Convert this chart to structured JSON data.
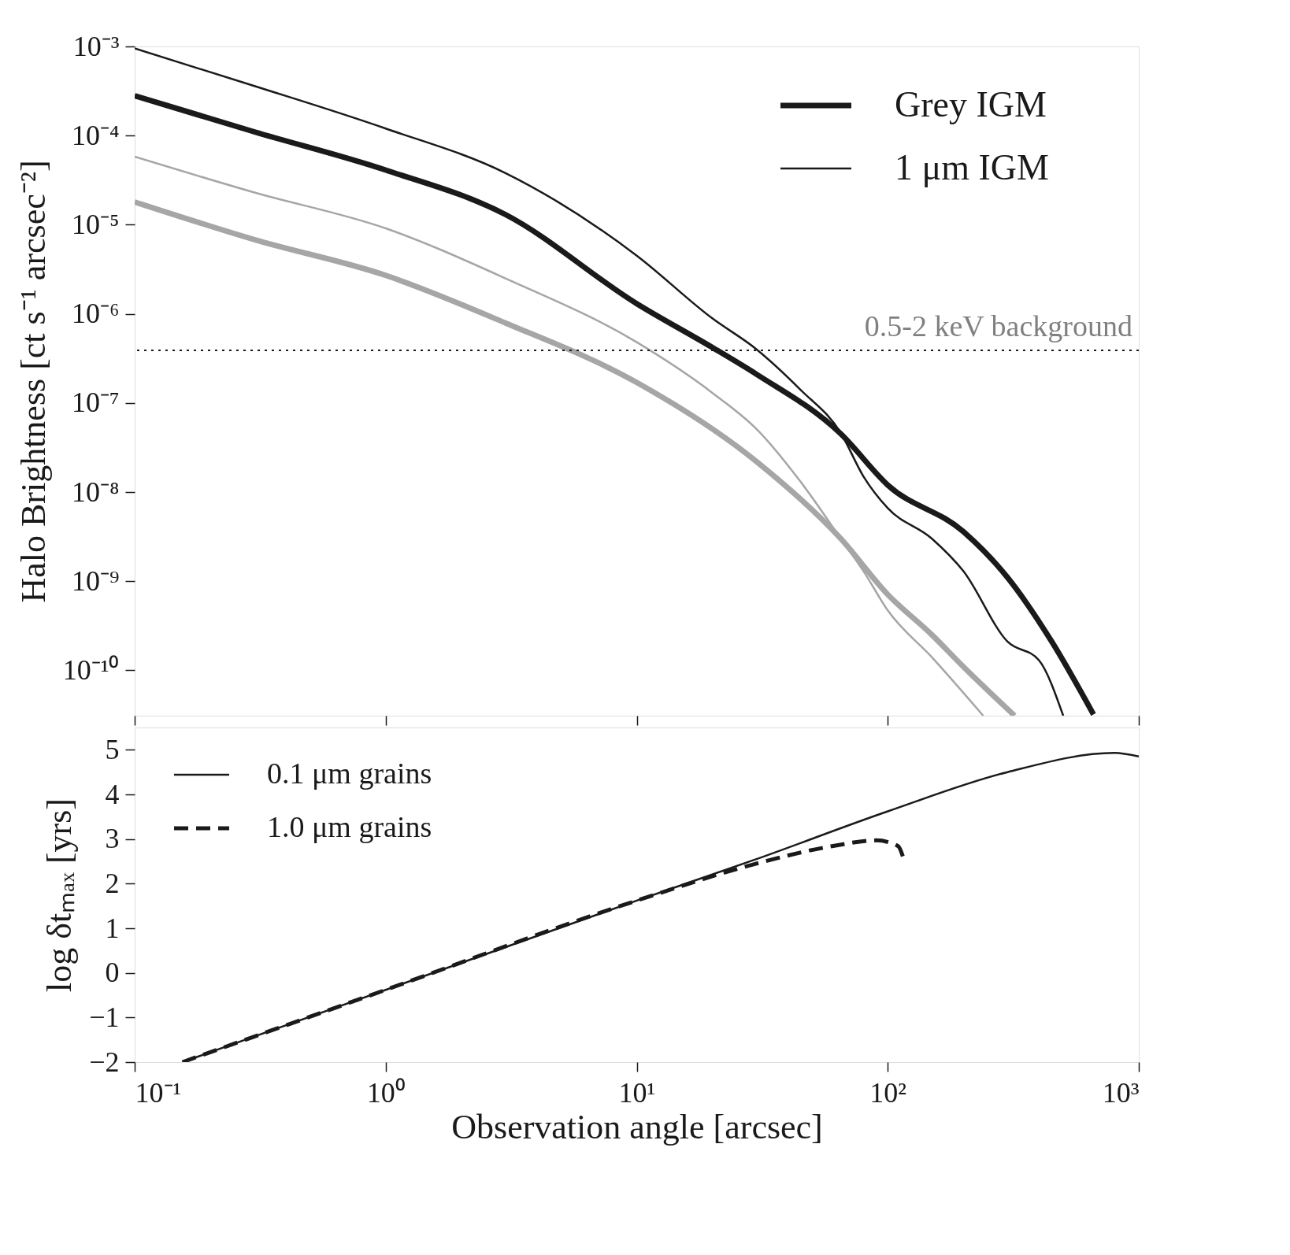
{
  "chart_data": [
    {
      "type": "line",
      "ylabel": "Halo Brightness [ct s⁻¹ arcsec⁻²]",
      "log": "xy",
      "legend": "top right",
      "grid": false,
      "tick_labels": "y",
      "xlim": [
        0.1,
        1000
      ],
      "xticks": [
        {
          "value": 0.1,
          "label": null
        },
        {
          "value": 1,
          "label": null
        },
        {
          "value": 10,
          "label": null
        },
        {
          "value": 100,
          "label": null
        },
        {
          "value": 1000,
          "label": null
        }
      ],
      "ylim": [
        3.1e-11,
        0.001
      ],
      "yticks": [
        {
          "value": 0.001,
          "label": "10⁻³"
        },
        {
          "value": 0.0001,
          "label": "10⁻⁴"
        },
        {
          "value": 1e-05,
          "label": "10⁻⁵"
        },
        {
          "value": 1e-06,
          "label": "10⁻⁶"
        },
        {
          "value": 1e-07,
          "label": "10⁻⁷"
        },
        {
          "value": 1e-08,
          "label": "10⁻⁸"
        },
        {
          "value": 1e-09,
          "label": "10⁻⁹"
        },
        {
          "value": 1e-10,
          "label": "10⁻¹⁰"
        }
      ],
      "ref_lines": [
        {
          "axis": "y",
          "value": 3.9e-07,
          "label": "0.5-2 keV background",
          "color": "#1a1a1a",
          "line_style": "dotted"
        }
      ],
      "series": [
        {
          "name": "Grey IGM",
          "color": "#1a1a1a",
          "x": [
            0.1,
            0.3,
            1,
            3,
            10,
            20,
            30,
            65,
            100,
            200,
            300,
            450,
            660
          ],
          "values": [
            0.00028,
            0.00011,
            4.1e-05,
            1.3e-05,
            1.3e-06,
            4.2e-07,
            2.1e-07,
            4.5e-08,
            1.2e-08,
            3.6e-09,
            1.1e-09,
            2.1e-10,
            3.2e-11
          ]
        },
        {
          "name": "1 μm IGM",
          "color": "#1a1a1a",
          "x": [
            0.1,
            0.3,
            1,
            3,
            10,
            20,
            30,
            45,
            65,
            80,
            100,
            150,
            200,
            300,
            400,
            500
          ],
          "values": [
            0.00095,
            0.00036,
            0.00012,
            3.8e-05,
            4.5e-06,
            8.9e-07,
            4e-07,
            1.4e-07,
            4.6e-08,
            1.5e-08,
            6.6e-09,
            3e-09,
            1.3e-09,
            2.1e-10,
            1.3e-10,
            3.1e-11
          ]
        },
        {
          "color": "#a6a6a6",
          "x": [
            0.1,
            0.3,
            1,
            3,
            10,
            30,
            65,
            100,
            150,
            200,
            320
          ],
          "values": [
            1.8e-05,
            6.8e-06,
            2.7e-06,
            7.9e-07,
            1.7e-07,
            2.2e-08,
            3e-09,
            7.1e-10,
            2.5e-10,
            1.1e-10,
            3.1e-11
          ]
        },
        {
          "color": "#a6a6a6",
          "x": [
            0.1,
            0.3,
            1,
            3,
            10,
            20,
            30,
            45,
            65,
            80,
            100,
            150,
            240
          ],
          "values": [
            5.8e-05,
            2.3e-05,
            9.1e-06,
            2.5e-06,
            4.8e-07,
            1.3e-07,
            5.1e-08,
            1.3e-08,
            3e-09,
            1.3e-09,
            4.7e-10,
            1.4e-10,
            3.1e-11
          ]
        }
      ]
    },
    {
      "type": "line",
      "xlabel": "Observation angle [arcsec]",
      "ylabel": "log δtₘₐₓ  [yrs]",
      "log": "x",
      "legend": "top left",
      "grid": false,
      "xlim": [
        0.1,
        1000
      ],
      "xticks": [
        {
          "value": 0.1,
          "label": "10⁻¹"
        },
        {
          "value": 1,
          "label": "10⁰"
        },
        {
          "value": 10,
          "label": "10¹"
        },
        {
          "value": 100,
          "label": "10²"
        },
        {
          "value": 1000,
          "label": "10³"
        }
      ],
      "ylim": [
        -2,
        5.5
      ],
      "yticks": [
        {
          "value": -2,
          "label": "−2"
        },
        {
          "value": -1,
          "label": "−1"
        },
        0,
        1,
        2,
        3,
        4,
        5
      ],
      "series": [
        {
          "name": "0.1 μm grains",
          "color": "#1a1a1a",
          "line_style": "solid",
          "x": [
            0.155,
            1,
            10,
            30,
            100,
            300,
            800,
            1000
          ],
          "values": [
            -2,
            -0.38,
            1.62,
            2.55,
            3.62,
            4.5,
            4.93,
            4.85
          ]
        },
        {
          "name": "1.0 μm grains",
          "color": "#1a1a1a",
          "line_style": "dashed",
          "x": [
            0.155,
            1,
            10,
            30,
            60,
            90,
            110,
            115
          ],
          "values": [
            -2,
            -0.38,
            1.62,
            2.45,
            2.84,
            2.97,
            2.84,
            2.6
          ]
        }
      ]
    }
  ]
}
